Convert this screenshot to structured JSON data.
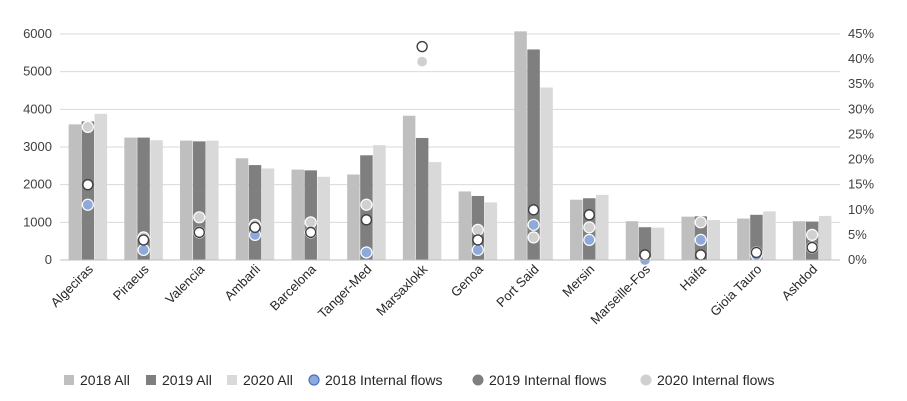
{
  "chart_data": {
    "type": "bar",
    "categories": [
      "Algeciras",
      "Piraeus",
      "Valencia",
      "Ambarli",
      "Barcelona",
      "Tanger-Med",
      "Marsaxlokk",
      "Genoa",
      "Port Said",
      "Mersin",
      "Marseille-Fos",
      "Haifa",
      "Gioia Tauro",
      "Ashdod"
    ],
    "series": [
      {
        "name": "2018 All",
        "type": "bar",
        "axis": "left",
        "color": "#bfbfbf",
        "values": [
          3600,
          3250,
          3170,
          2700,
          2400,
          2270,
          3830,
          1820,
          6070,
          1600,
          1030,
          1150,
          1100,
          1030
        ]
      },
      {
        "name": "2019 All",
        "type": "bar",
        "axis": "left",
        "color": "#7f7f7f",
        "values": [
          3680,
          3250,
          3150,
          2520,
          2380,
          2780,
          3240,
          1700,
          5590,
          1640,
          870,
          1160,
          1200,
          1020
        ]
      },
      {
        "name": "2020 All",
        "type": "bar",
        "axis": "left",
        "color": "#d9d9d9",
        "values": [
          3880,
          3180,
          3170,
          2430,
          2210,
          3050,
          2600,
          1530,
          4580,
          1730,
          860,
          1060,
          1290,
          1170
        ]
      },
      {
        "name": "2018 Internal flows",
        "type": "scatter",
        "axis": "right",
        "marker": "blue-circle",
        "values": [
          11,
          2,
          5.5,
          5,
          5.5,
          1.5,
          42.5,
          2,
          7,
          4,
          0,
          4,
          1,
          2.5
        ]
      },
      {
        "name": "2019 Internal flows",
        "type": "scatter",
        "axis": "right",
        "marker": "white-circle-dark-outline",
        "values": [
          15,
          4,
          5.5,
          6.5,
          5.5,
          8,
          42.5,
          4,
          10,
          9,
          1,
          1,
          1.5,
          2.5
        ]
      },
      {
        "name": "2020 Internal flows",
        "type": "scatter",
        "axis": "right",
        "marker": "light-gray-circle",
        "values": [
          26.5,
          4.5,
          8.5,
          7,
          7.5,
          11,
          39.5,
          6,
          4.5,
          6.5,
          0,
          7.5,
          1.5,
          5
        ]
      }
    ],
    "y_left": {
      "min": 0,
      "max": 6000,
      "ticks": [
        "0",
        "1000",
        "2000",
        "3000",
        "4000",
        "5000",
        "6000"
      ]
    },
    "y_right": {
      "min": 0,
      "max": 45,
      "ticks": [
        "0%",
        "5%",
        "10%",
        "15%",
        "20%",
        "25%",
        "30%",
        "35%",
        "40%",
        "45%"
      ]
    },
    "legend_position": "bottom",
    "grid": true
  }
}
